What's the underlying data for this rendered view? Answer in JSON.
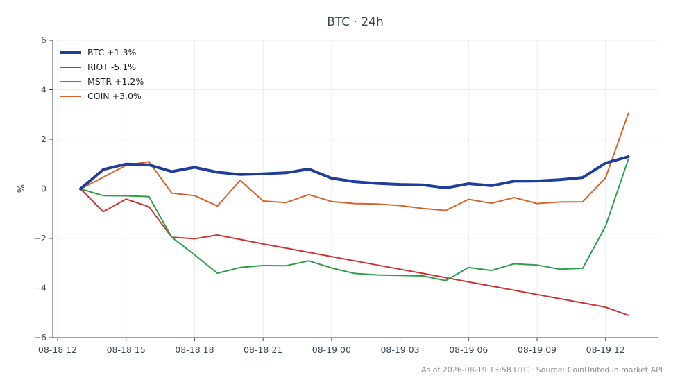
{
  "chart_data": {
    "type": "line",
    "title": "BTC · 24h",
    "ylabel": "%",
    "ylim": [
      -6,
      6
    ],
    "yticks": [
      -6,
      -4,
      -2,
      0,
      2,
      4,
      6
    ],
    "xlim": [
      0,
      26.5
    ],
    "xticks": [
      {
        "x": 0,
        "label": "08-18 12"
      },
      {
        "x": 3,
        "label": "08-18 15"
      },
      {
        "x": 6,
        "label": "08-18 18"
      },
      {
        "x": 9,
        "label": "08-18 21"
      },
      {
        "x": 12,
        "label": "08-19 00"
      },
      {
        "x": 15,
        "label": "08-19 03"
      },
      {
        "x": 18,
        "label": "08-19 06"
      },
      {
        "x": 21,
        "label": "08-19 09"
      },
      {
        "x": 24,
        "label": "08-19 12"
      }
    ],
    "x": [
      1,
      2,
      3,
      4,
      5,
      6,
      7,
      8,
      9,
      10,
      11,
      12,
      13,
      14,
      15,
      16,
      17,
      18,
      19,
      20,
      21,
      22,
      23,
      24,
      25
    ],
    "grid": true,
    "zero_line": true,
    "legend_position": "top-left",
    "series": [
      {
        "name": "BTC +1.3%",
        "color": "#1f3d99",
        "width": 4,
        "values": [
          0,
          0.78,
          1.0,
          0.97,
          0.7,
          0.87,
          0.67,
          0.58,
          0.61,
          0.65,
          0.8,
          0.43,
          0.29,
          0.22,
          0.18,
          0.16,
          0.04,
          0.21,
          0.13,
          0.31,
          0.32,
          0.37,
          0.46,
          1.04,
          1.3
        ]
      },
      {
        "name": "RIOT -5.1%",
        "color": "#cc3333",
        "width": 2,
        "values": [
          0,
          -0.92,
          -0.41,
          -0.72,
          -1.95,
          -2.01,
          -1.86,
          -2.04,
          -2.22,
          -2.39,
          -2.56,
          -2.73,
          -2.9,
          -3.07,
          -3.24,
          -3.41,
          -3.58,
          -3.75,
          -3.92,
          -4.09,
          -4.26,
          -4.43,
          -4.6,
          -4.77,
          -5.1
        ]
      },
      {
        "name": "MSTR +1.2%",
        "color": "#2e9e4a",
        "width": 2,
        "values": [
          0,
          -0.27,
          -0.28,
          -0.31,
          -1.95,
          -2.66,
          -3.4,
          -3.17,
          -3.09,
          -3.1,
          -2.9,
          -3.19,
          -3.41,
          -3.47,
          -3.49,
          -3.51,
          -3.7,
          -3.17,
          -3.29,
          -3.02,
          -3.07,
          -3.24,
          -3.2,
          -1.5,
          1.2
        ]
      },
      {
        "name": "COIN +3.0%",
        "color": "#d9622b",
        "width": 2,
        "values": [
          0,
          0.47,
          0.95,
          1.1,
          -0.17,
          -0.27,
          -0.69,
          0.35,
          -0.49,
          -0.55,
          -0.23,
          -0.51,
          -0.59,
          -0.61,
          -0.67,
          -0.79,
          -0.87,
          -0.42,
          -0.58,
          -0.35,
          -0.59,
          -0.53,
          -0.52,
          0.45,
          3.05
        ]
      }
    ]
  },
  "footer": "As of 2026-08-19 13:58 UTC · Source: CoinUnited.io market API"
}
